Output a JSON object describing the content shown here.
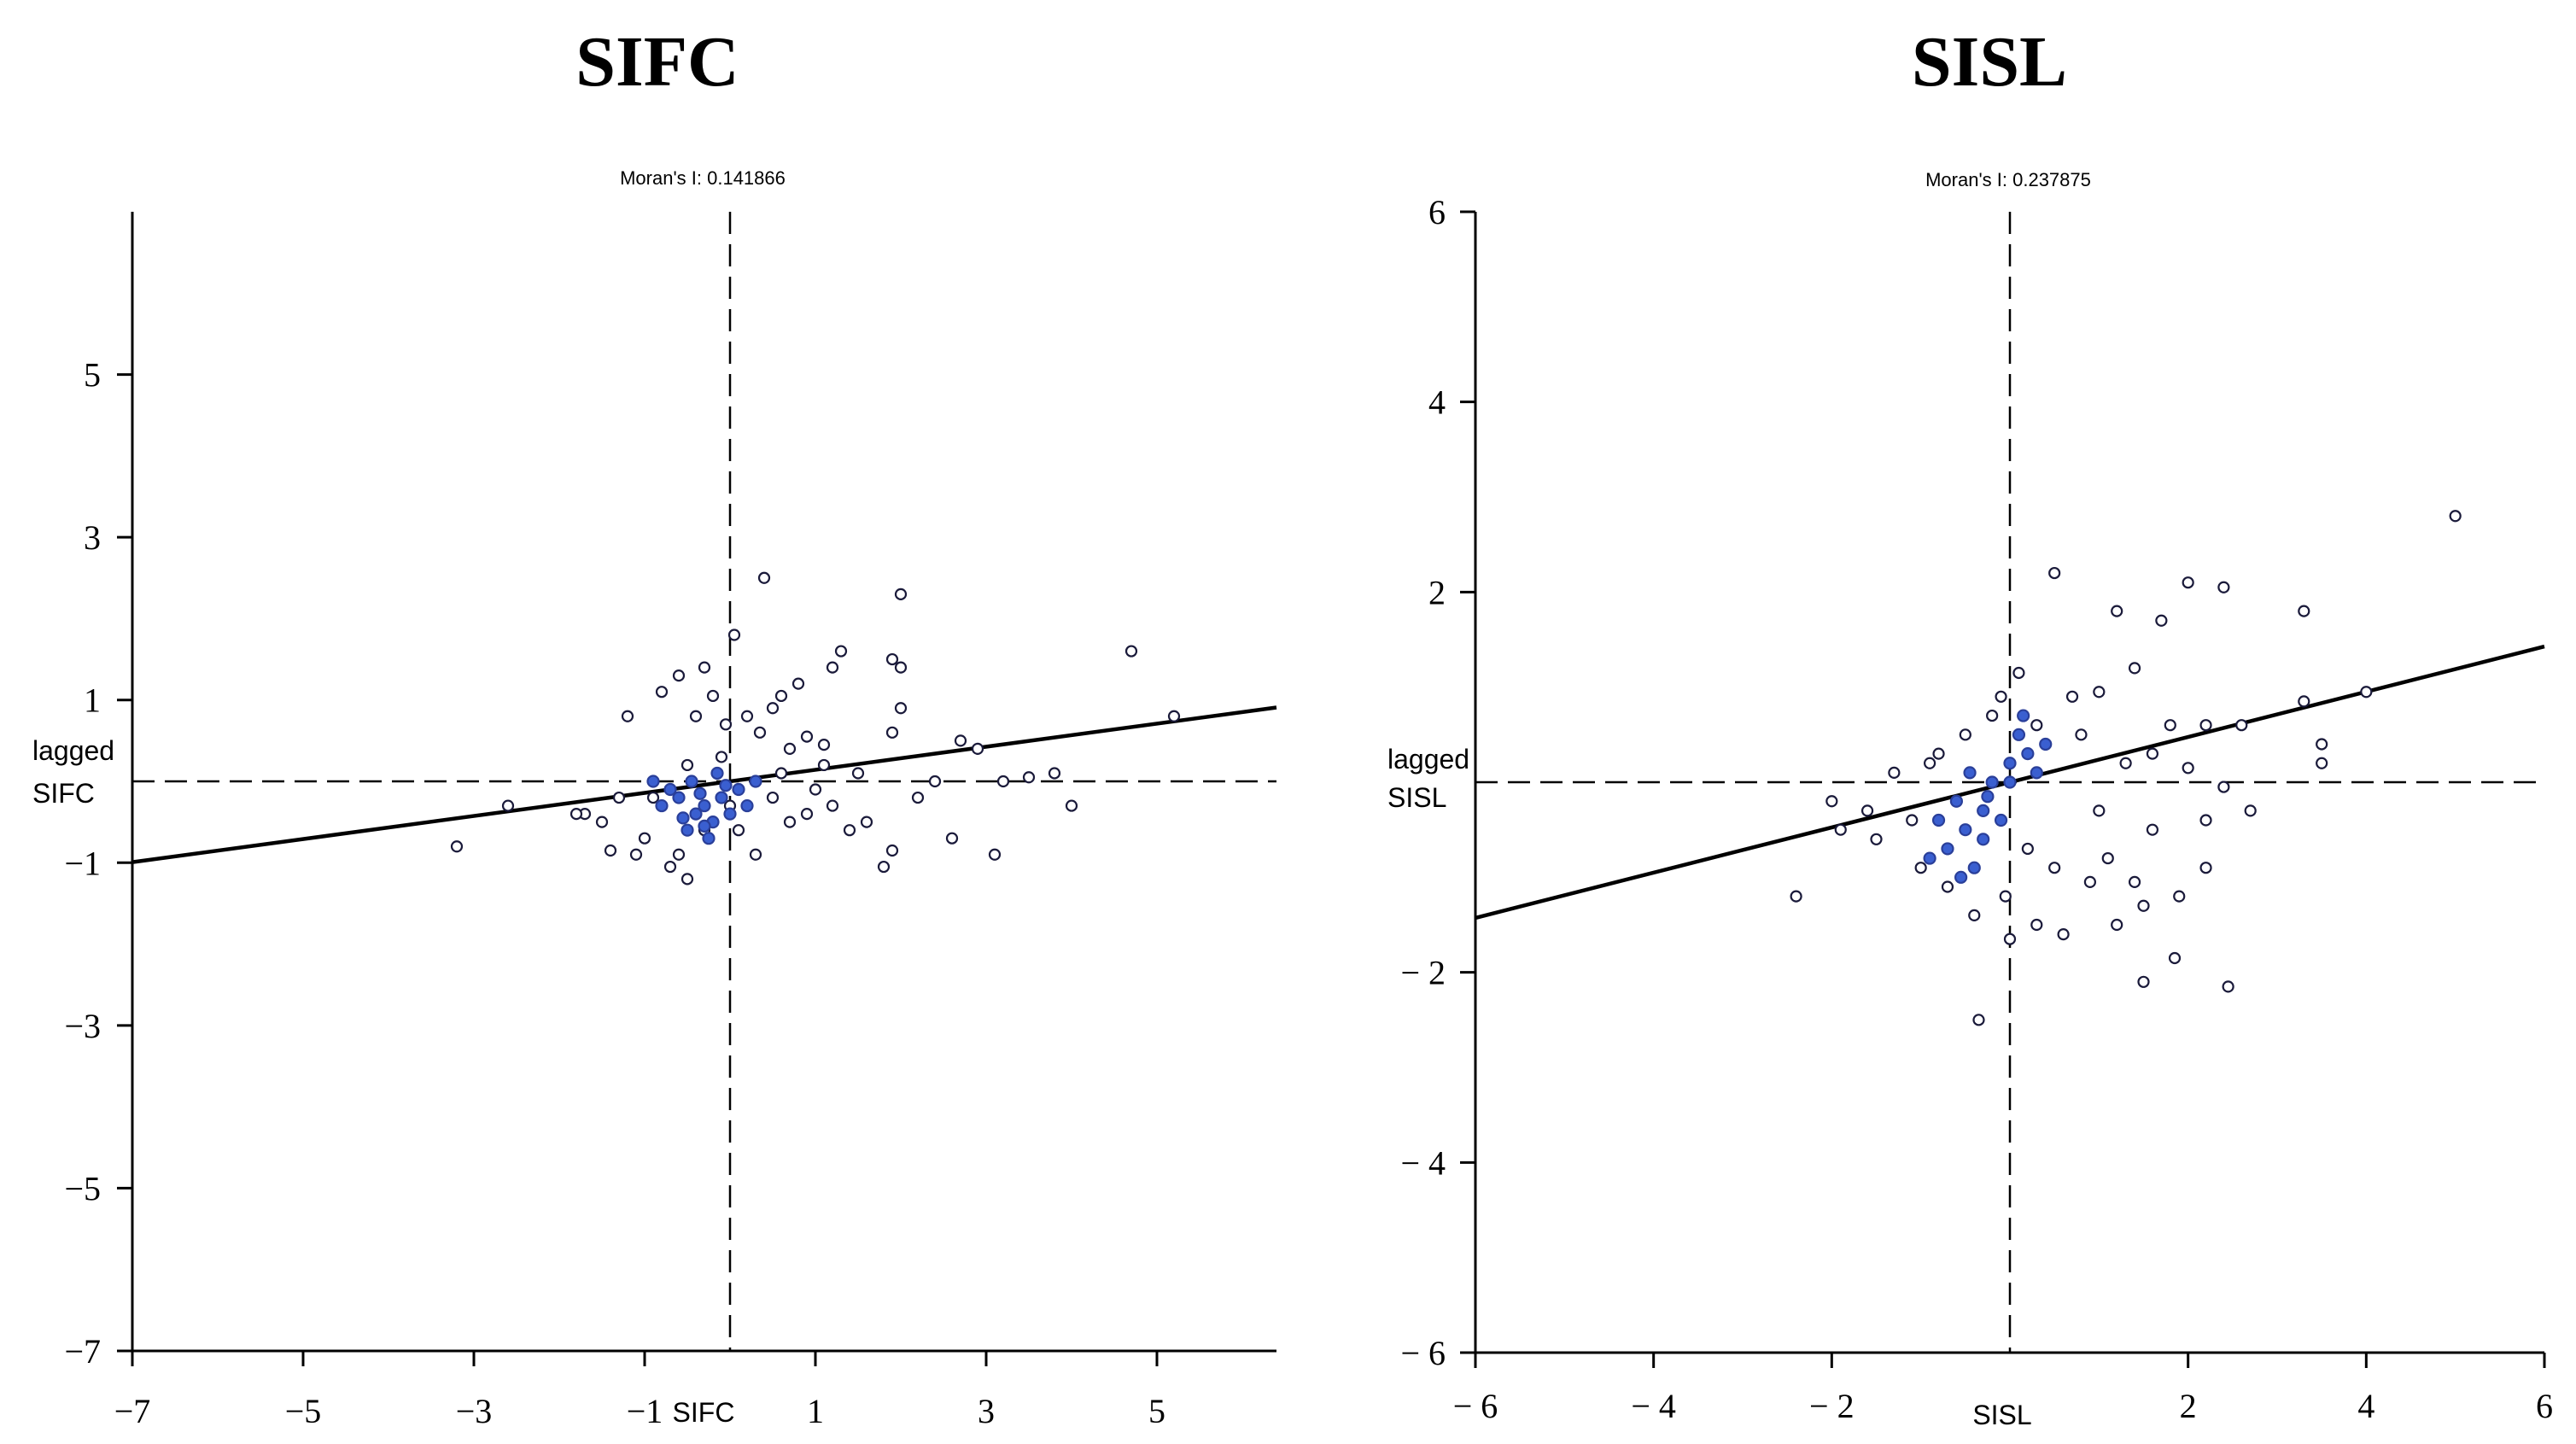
{
  "chart_data": [
    {
      "type": "scatter",
      "title": "SIFC",
      "subtitle": "Moran's I: 0.141866",
      "xlabel": "SIFC",
      "ylabel": [
        "lagged",
        "SIFC"
      ],
      "xlim": [
        -7,
        7
      ],
      "ylim": [
        -7,
        7
      ],
      "xticks": [
        -7,
        -5,
        -3,
        -1,
        1,
        3,
        5
      ],
      "yticks": [
        5,
        3,
        1,
        -1,
        -3,
        -5,
        -7
      ],
      "xtick_labels": [
        "−7",
        "−5",
        "−3",
        "−1",
        "1",
        "3",
        "5"
      ],
      "ytick_labels": [
        "5",
        "3",
        "1",
        "−1",
        "−3",
        "−5",
        "−7"
      ],
      "moran_i": 0.141866,
      "regression": {
        "slope": 0.141866,
        "intercept": 0
      },
      "points": [
        [
          0.4,
          2.5
        ],
        [
          2,
          2.3
        ],
        [
          0.05,
          1.8
        ],
        [
          1.3,
          1.6
        ],
        [
          1.9,
          1.5
        ],
        [
          4.7,
          1.6
        ],
        [
          2,
          1.4
        ],
        [
          -0.6,
          1.3
        ],
        [
          -0.3,
          1.4
        ],
        [
          1.2,
          1.4
        ],
        [
          0.8,
          1.2
        ],
        [
          -0.8,
          1.1
        ],
        [
          0.6,
          1.05
        ],
        [
          2,
          0.9
        ],
        [
          -1.2,
          0.8
        ],
        [
          -0.2,
          1.05
        ],
        [
          0.2,
          0.8
        ],
        [
          1.9,
          0.6
        ],
        [
          2.7,
          0.5
        ],
        [
          5.2,
          0.8
        ],
        [
          0.9,
          0.55
        ],
        [
          1.1,
          0.45
        ],
        [
          0.7,
          0.4
        ],
        [
          -1.7,
          -0.4
        ],
        [
          -2.6,
          -0.3
        ],
        [
          -3.2,
          -0.8
        ],
        [
          -1.4,
          -0.85
        ],
        [
          -1,
          -0.7
        ],
        [
          -0.5,
          -1.2
        ],
        [
          -0.7,
          -1.05
        ],
        [
          0.3,
          -0.9
        ],
        [
          0.7,
          -0.5
        ],
        [
          0.9,
          -0.4
        ],
        [
          1.2,
          -0.3
        ],
        [
          1.6,
          -0.5
        ],
        [
          1.8,
          -1.05
        ],
        [
          1.9,
          -0.85
        ],
        [
          2.2,
          -0.2
        ],
        [
          2.6,
          -0.7
        ],
        [
          3.1,
          -0.9
        ],
        [
          3.2,
          0
        ],
        [
          3.5,
          0.05
        ],
        [
          3.8,
          0.1
        ],
        [
          4,
          -0.3
        ],
        [
          2.4,
          0
        ],
        [
          1.5,
          0.1
        ],
        [
          -0.1,
          0.3
        ],
        [
          -0.5,
          0.2
        ],
        [
          -0.9,
          -0.2
        ],
        [
          -1.5,
          -0.5
        ],
        [
          -1.1,
          -0.9
        ],
        [
          0.1,
          -0.6
        ],
        [
          0.5,
          -0.2
        ],
        [
          1,
          -0.1
        ],
        [
          -0.3,
          -0.6
        ],
        [
          0.5,
          0.9
        ],
        [
          -0.4,
          0.8
        ],
        [
          0.35,
          0.6
        ],
        [
          -0.05,
          0.7
        ],
        [
          1.4,
          -0.6
        ],
        [
          1.1,
          0.2
        ],
        [
          -1.3,
          -0.2
        ],
        [
          -0.6,
          -0.9
        ],
        [
          0.6,
          0.1
        ],
        [
          -1.8,
          -0.4
        ],
        [
          2.9,
          0.4
        ],
        [
          0,
          -0.3
        ]
      ],
      "dense_points": [
        [
          -0.4,
          -0.4
        ],
        [
          -0.3,
          -0.3
        ],
        [
          -0.6,
          -0.2
        ],
        [
          -0.2,
          -0.5
        ],
        [
          -0.5,
          -0.6
        ],
        [
          -0.1,
          -0.2
        ],
        [
          -0.7,
          -0.1
        ],
        [
          0,
          -0.4
        ],
        [
          -0.35,
          -0.15
        ],
        [
          -0.25,
          -0.7
        ],
        [
          -0.45,
          0
        ],
        [
          0.1,
          -0.1
        ],
        [
          -0.8,
          -0.3
        ],
        [
          -0.15,
          0.1
        ],
        [
          0.2,
          -0.3
        ],
        [
          -0.55,
          -0.45
        ],
        [
          -0.3,
          -0.55
        ],
        [
          0.3,
          0
        ],
        [
          -0.9,
          0
        ],
        [
          -0.05,
          -0.05
        ]
      ]
    },
    {
      "type": "scatter",
      "title": "SISL",
      "subtitle": "Moran's I: 0.237875",
      "xlabel": "SISL",
      "ylabel": [
        "lagged",
        "SISL"
      ],
      "xlim": [
        -6,
        6
      ],
      "ylim": [
        -6,
        6
      ],
      "xticks": [
        -6,
        -4,
        -2,
        2,
        4,
        6
      ],
      "yticks": [
        6,
        4,
        2,
        -2,
        -4,
        -6
      ],
      "xtick_labels": [
        "− 6",
        "− 4",
        "− 2",
        "2",
        "4",
        "6"
      ],
      "ytick_labels": [
        "6",
        "4",
        "2",
        "− 2",
        "− 4",
        "− 6"
      ],
      "moran_i": 0.237875,
      "regression": {
        "slope": 0.237875,
        "intercept": 0
      },
      "points": [
        [
          5,
          2.8
        ],
        [
          0.5,
          2.2
        ],
        [
          2,
          2.1
        ],
        [
          2.4,
          2.05
        ],
        [
          1.2,
          1.8
        ],
        [
          1.7,
          1.7
        ],
        [
          3.3,
          1.8
        ],
        [
          1.4,
          1.2
        ],
        [
          0.1,
          1.15
        ],
        [
          -0.1,
          0.9
        ],
        [
          0.7,
          0.9
        ],
        [
          1,
          0.95
        ],
        [
          1.8,
          0.6
        ],
        [
          2.2,
          0.6
        ],
        [
          2.6,
          0.6
        ],
        [
          3.3,
          0.85
        ],
        [
          4,
          0.95
        ],
        [
          3.5,
          0.4
        ],
        [
          3.5,
          0.2
        ],
        [
          2.7,
          -0.3
        ],
        [
          2.4,
          -0.05
        ],
        [
          2.2,
          -0.4
        ],
        [
          1.6,
          -0.5
        ],
        [
          1.4,
          -1.05
        ],
        [
          1.5,
          -1.3
        ],
        [
          1.2,
          -1.5
        ],
        [
          0.9,
          -1.05
        ],
        [
          0.6,
          -1.6
        ],
        [
          0.3,
          -1.5
        ],
        [
          0,
          -1.65
        ],
        [
          -0.35,
          -2.5
        ],
        [
          1.5,
          -2.1
        ],
        [
          1.85,
          -1.85
        ],
        [
          2.45,
          -2.15
        ],
        [
          1.9,
          -1.2
        ],
        [
          2.2,
          -0.9
        ],
        [
          -2.4,
          -1.2
        ],
        [
          -1.9,
          -0.5
        ],
        [
          -1.6,
          -0.3
        ],
        [
          -1.3,
          0.1
        ],
        [
          -0.8,
          0.3
        ],
        [
          -0.5,
          0.5
        ],
        [
          -0.2,
          0.7
        ],
        [
          0.3,
          0.6
        ],
        [
          -1,
          -0.9
        ],
        [
          -0.7,
          -1.1
        ],
        [
          -0.4,
          -1.4
        ],
        [
          -0.05,
          -1.2
        ],
        [
          0.5,
          -0.9
        ],
        [
          1,
          -0.3
        ],
        [
          1.3,
          0.2
        ],
        [
          0.8,
          0.5
        ],
        [
          -1.5,
          -0.6
        ],
        [
          -2,
          -0.2
        ],
        [
          1.6,
          0.3
        ],
        [
          -0.9,
          0.2
        ],
        [
          0.2,
          -0.7
        ],
        [
          -1.1,
          -0.4
        ],
        [
          2,
          0.15
        ],
        [
          1.1,
          -0.8
        ]
      ],
      "dense_points": [
        [
          -0.5,
          -0.5
        ],
        [
          -0.3,
          -0.3
        ],
        [
          -0.7,
          -0.7
        ],
        [
          -0.4,
          -0.9
        ],
        [
          -0.2,
          0
        ],
        [
          0,
          0.2
        ],
        [
          0.2,
          0.3
        ],
        [
          -0.6,
          -0.2
        ],
        [
          -0.8,
          -0.4
        ],
        [
          -0.1,
          -0.4
        ],
        [
          0.1,
          0.5
        ],
        [
          -0.3,
          -0.6
        ],
        [
          0.3,
          0.1
        ],
        [
          -0.55,
          -1
        ],
        [
          0,
          0
        ],
        [
          -0.9,
          -0.8
        ],
        [
          0.15,
          0.7
        ],
        [
          -0.45,
          0.1
        ],
        [
          -0.25,
          -0.15
        ],
        [
          0.4,
          0.4
        ]
      ]
    }
  ]
}
